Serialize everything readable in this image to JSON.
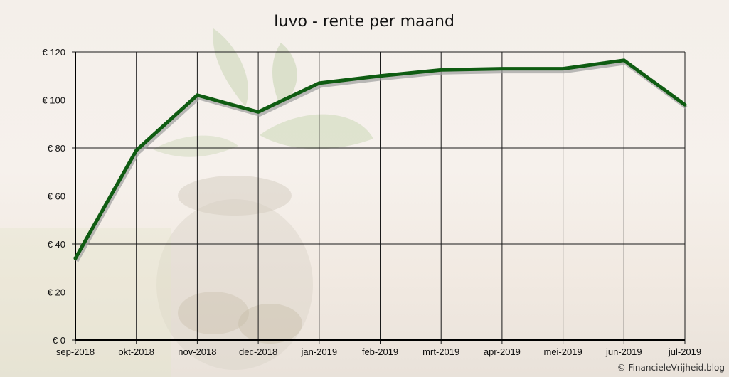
{
  "chart_data": {
    "type": "line",
    "title": "Iuvo - rente per maand",
    "xlabel": "",
    "ylabel": "",
    "categories": [
      "sep-2018",
      "okt-2018",
      "nov-2018",
      "dec-2018",
      "jan-2019",
      "feb-2019",
      "mrt-2019",
      "apr-2019",
      "mei-2019",
      "jun-2019",
      "jul-2019"
    ],
    "y_ticks": [
      "€ 0",
      "€ 20",
      "€ 40",
      "€ 60",
      "€ 80",
      "€ 100",
      "€ 120"
    ],
    "ylim": [
      0,
      120
    ],
    "grid": true,
    "series": [
      {
        "values": [
          34,
          79,
          102,
          95,
          107,
          110,
          112.5,
          113,
          113,
          116.5,
          98
        ]
      }
    ],
    "colors": {
      "line": "#0f5c12",
      "shadow": "#9e9e9e",
      "grid": "#1a1a1a"
    }
  },
  "footer": {
    "copyright": "© FinancieleVrijheid.blog"
  }
}
